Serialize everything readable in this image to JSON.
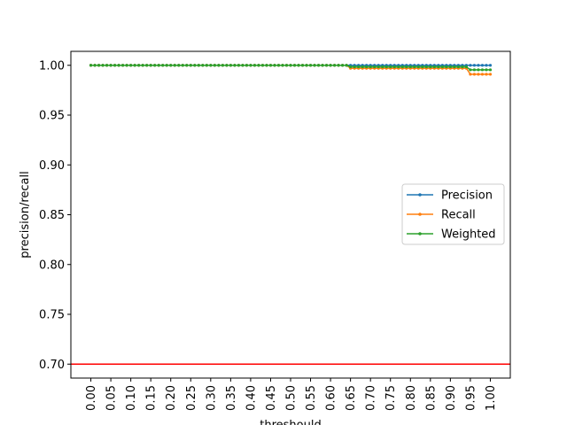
{
  "chart_data": {
    "type": "line",
    "title": "",
    "xlabel": "threshould",
    "ylabel": "precision/recall",
    "xlim": [
      -0.05,
      1.05
    ],
    "ylim": [
      0.686,
      1.014
    ],
    "x_ticks": [
      "0.00",
      "0.05",
      "0.10",
      "0.15",
      "0.20",
      "0.25",
      "0.30",
      "0.35",
      "0.40",
      "0.45",
      "0.50",
      "0.55",
      "0.60",
      "0.65",
      "0.70",
      "0.75",
      "0.80",
      "0.85",
      "0.90",
      "0.95",
      "1.00"
    ],
    "y_ticks": [
      "0.70",
      "0.75",
      "0.80",
      "0.85",
      "0.90",
      "0.95",
      "1.00"
    ],
    "grid": false,
    "legend_position": "center-right",
    "x_start": 0.0,
    "x_end": 1.0,
    "x_step": 0.01,
    "series": [
      {
        "name": "Precision",
        "color": "#1f77b4",
        "segments": [
          {
            "from": 0.0,
            "to": 1.0,
            "value": 1.0
          }
        ]
      },
      {
        "name": "Recall",
        "color": "#ff7f0e",
        "segments": [
          {
            "from": 0.0,
            "to": 0.64,
            "value": 1.0
          },
          {
            "from": 0.65,
            "to": 0.94,
            "value": 0.997
          },
          {
            "from": 0.95,
            "to": 1.0,
            "value": 0.991
          }
        ]
      },
      {
        "name": "Weighted",
        "color": "#2ca02c",
        "segments": [
          {
            "from": 0.0,
            "to": 0.64,
            "value": 1.0
          },
          {
            "from": 0.65,
            "to": 0.94,
            "value": 0.9985
          },
          {
            "from": 0.95,
            "to": 1.0,
            "value": 0.9955
          }
        ]
      }
    ],
    "reference_line": {
      "y": 0.7,
      "color": "#ff0000"
    }
  }
}
